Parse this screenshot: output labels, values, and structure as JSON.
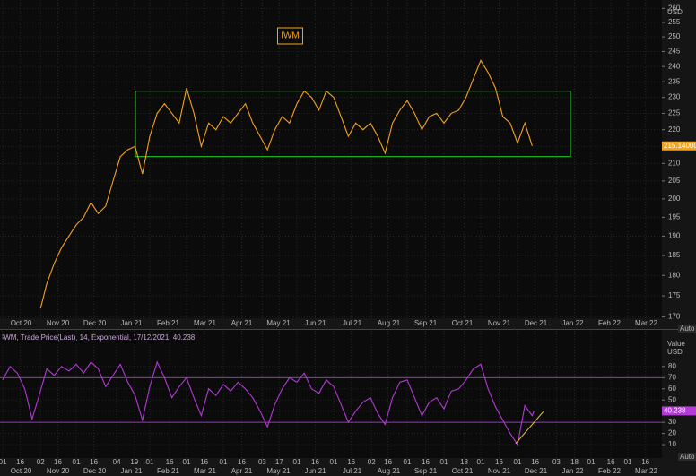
{
  "chart_data": [
    {
      "type": "line",
      "log": true,
      "grid": true,
      "y_unit": "USD",
      "scale_button": "Auto",
      "xlim": [
        -0.073,
        17.927
      ],
      "ylim": [
        169.7,
        263
      ],
      "yticks": [
        170,
        175,
        180,
        185,
        190,
        195,
        200,
        205,
        210,
        215,
        220,
        225,
        230,
        235,
        240,
        245,
        250,
        255,
        260
      ],
      "series": [
        {
          "name": "IWM",
          "color": "#f5a21c",
          "x": [
            1.03,
            1.2,
            1.4,
            1.6,
            1.8,
            2,
            2.2,
            2.4,
            2.6,
            2.8,
            3,
            3.2,
            3.4,
            3.6,
            3.8,
            4,
            4.2,
            4.4,
            4.6,
            4.8,
            5,
            5.2,
            5.4,
            5.6,
            5.8,
            6,
            6.2,
            6.4,
            6.6,
            6.8,
            7,
            7.2,
            7.4,
            7.6,
            7.8,
            8,
            8.2,
            8.4,
            8.6,
            8.8,
            9,
            9.2,
            9.4,
            9.6,
            9.8,
            10,
            10.2,
            10.4,
            10.6,
            10.8,
            11,
            11.2,
            11.4,
            11.6,
            11.8,
            12,
            12.2,
            12.4,
            12.6,
            12.8,
            13,
            13.2,
            13.4,
            13.6,
            13.8,
            14,
            14.2,
            14.4
          ],
          "values": [
            172,
            178,
            183,
            187,
            190,
            193,
            195,
            199,
            196,
            198,
            205,
            212,
            214,
            215,
            207,
            218,
            225,
            228,
            225,
            222,
            233,
            225,
            215,
            222,
            220,
            224,
            222,
            225,
            228,
            222,
            218,
            214,
            220,
            224,
            222,
            228,
            232,
            230,
            226,
            232,
            230,
            224,
            218,
            222,
            220,
            222,
            218,
            213,
            222,
            226,
            229,
            225,
            220,
            224,
            225,
            222,
            225,
            226,
            230,
            236,
            242,
            238,
            233,
            224,
            222,
            216,
            222,
            215.14
          ],
          "value_labels": [
            null,
            null,
            null,
            null,
            null,
            null,
            null,
            null,
            null,
            null,
            null,
            null,
            null,
            null,
            null,
            null,
            null,
            null,
            null,
            null,
            null,
            null,
            null,
            null,
            null,
            null,
            null,
            null,
            null,
            null,
            null,
            null,
            null,
            null,
            null,
            null,
            null,
            null,
            null,
            null,
            null,
            null,
            null,
            null,
            null,
            null,
            null,
            null,
            null,
            null,
            null,
            null,
            null,
            null,
            null,
            null,
            null,
            null,
            null,
            null,
            null,
            null,
            null,
            null,
            null,
            null,
            null,
            "215.14000"
          ]
        }
      ],
      "box": {
        "x": [
          3.61,
          15.44
        ],
        "y": [
          212,
          232
        ],
        "color": "#22b422"
      }
    },
    {
      "type": "line",
      "grid": true,
      "title": "IWM, Trade Price(Last), 14, Exponential, 17/12/2021, 40.238",
      "y_label": "Value",
      "y_unit": "USD",
      "scale_button": "Auto",
      "xlim": [
        -0.073,
        17.927
      ],
      "ylim": [
        -2,
        112
      ],
      "yticks": [
        10,
        20,
        30,
        40,
        50,
        60,
        70,
        80
      ],
      "reference_lines": [
        70,
        30
      ],
      "trend": {
        "x": [
          13.95,
          14.7
        ],
        "y": [
          11,
          39.5
        ],
        "color": "#e8d020"
      },
      "xticks": [
        {
          "value": 0,
          "label": "01"
        },
        {
          "value": 0.48,
          "label": "16"
        },
        {
          "value": 1.03,
          "label": "02"
        },
        {
          "value": 1.5,
          "label": "16"
        },
        {
          "value": 2,
          "label": "01"
        },
        {
          "value": 2.48,
          "label": "16"
        },
        {
          "value": 3.1,
          "label": "04"
        },
        {
          "value": 3.58,
          "label": "19"
        },
        {
          "value": 4,
          "label": "01"
        },
        {
          "value": 4.54,
          "label": "16"
        },
        {
          "value": 5,
          "label": "01"
        },
        {
          "value": 5.48,
          "label": "16"
        },
        {
          "value": 6,
          "label": "01"
        },
        {
          "value": 6.5,
          "label": "16"
        },
        {
          "value": 7.06,
          "label": "03"
        },
        {
          "value": 7.52,
          "label": "17"
        },
        {
          "value": 8,
          "label": "01"
        },
        {
          "value": 8.5,
          "label": "16"
        },
        {
          "value": 9,
          "label": "01"
        },
        {
          "value": 9.48,
          "label": "16"
        },
        {
          "value": 10.03,
          "label": "02"
        },
        {
          "value": 10.48,
          "label": "16"
        },
        {
          "value": 11,
          "label": "01"
        },
        {
          "value": 11.5,
          "label": "16"
        },
        {
          "value": 12,
          "label": "01"
        },
        {
          "value": 12.55,
          "label": "18"
        },
        {
          "value": 13,
          "label": "01"
        },
        {
          "value": 13.5,
          "label": "16"
        },
        {
          "value": 14,
          "label": "01"
        },
        {
          "value": 14.48,
          "label": "16"
        },
        {
          "value": 15.06,
          "label": "03"
        },
        {
          "value": 15.55,
          "label": "18"
        },
        {
          "value": 16,
          "label": "01"
        },
        {
          "value": 16.54,
          "label": "16"
        },
        {
          "value": 17,
          "label": "01"
        },
        {
          "value": 17.48,
          "label": "16"
        }
      ],
      "month_labels": [
        {
          "value": 0.5,
          "label": "Oct 20"
        },
        {
          "value": 1.5,
          "label": "Nov 20"
        },
        {
          "value": 2.5,
          "label": "Dec 20"
        },
        {
          "value": 3.5,
          "label": "Jan 21"
        },
        {
          "value": 4.5,
          "label": "Feb 21"
        },
        {
          "value": 5.5,
          "label": "Mar 21"
        },
        {
          "value": 6.5,
          "label": "Apr 21"
        },
        {
          "value": 7.5,
          "label": "May 21"
        },
        {
          "value": 8.5,
          "label": "Jun 21"
        },
        {
          "value": 9.5,
          "label": "Jul 21"
        },
        {
          "value": 10.5,
          "label": "Aug 21"
        },
        {
          "value": 11.5,
          "label": "Sep 21"
        },
        {
          "value": 12.5,
          "label": "Oct 21"
        },
        {
          "value": 13.5,
          "label": "Nov 21"
        },
        {
          "value": 14.5,
          "label": "Dec 21"
        },
        {
          "value": 15.5,
          "label": "Jan 22"
        },
        {
          "value": 16.5,
          "label": "Feb 22"
        },
        {
          "value": 17.5,
          "label": "Mar 22"
        }
      ],
      "series": [
        {
          "color": "#b23ad6",
          "x": [
            0,
            0.2,
            0.4,
            0.6,
            0.8,
            1,
            1.2,
            1.4,
            1.6,
            1.8,
            2,
            2.2,
            2.4,
            2.6,
            2.8,
            3,
            3.2,
            3.4,
            3.6,
            3.8,
            4,
            4.2,
            4.4,
            4.6,
            4.8,
            5,
            5.2,
            5.4,
            5.6,
            5.8,
            6,
            6.2,
            6.4,
            6.6,
            6.8,
            7,
            7.2,
            7.4,
            7.6,
            7.8,
            8,
            8.2,
            8.4,
            8.6,
            8.8,
            9,
            9.2,
            9.4,
            9.6,
            9.8,
            10,
            10.2,
            10.4,
            10.6,
            10.8,
            11,
            11.2,
            11.4,
            11.6,
            11.8,
            12,
            12.2,
            12.4,
            12.6,
            12.8,
            13,
            13.2,
            13.4,
            13.6,
            13.8,
            14,
            14.2,
            14.4,
            14.45
          ],
          "values": [
            68,
            80,
            74,
            60,
            33,
            55,
            78,
            72,
            80,
            76,
            82,
            74,
            84,
            78,
            62,
            72,
            82,
            66,
            54,
            32,
            62,
            84,
            70,
            52,
            62,
            70,
            52,
            36,
            60,
            54,
            64,
            58,
            66,
            60,
            52,
            40,
            26,
            46,
            60,
            70,
            66,
            74,
            60,
            56,
            68,
            62,
            46,
            30,
            40,
            48,
            52,
            38,
            28,
            52,
            66,
            68,
            52,
            36,
            48,
            52,
            42,
            58,
            60,
            68,
            78,
            82,
            60,
            44,
            32,
            20,
            10,
            45,
            36,
            40.238
          ]
        }
      ]
    }
  ]
}
